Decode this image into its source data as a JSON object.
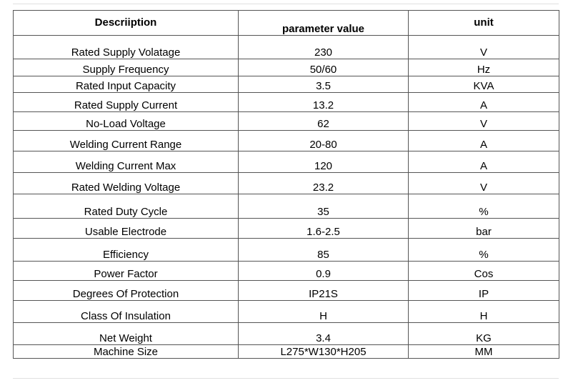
{
  "table": {
    "headers": [
      "Descriiption",
      "parameter value",
      "unit"
    ],
    "rows": [
      [
        "Rated Supply Volatage",
        "230",
        "V"
      ],
      [
        "Supply Frequency",
        "50/60",
        "Hz"
      ],
      [
        "Rated Input Capacity",
        "3.5",
        "KVA"
      ],
      [
        "Rated Supply Current",
        "13.2",
        "A"
      ],
      [
        "No-Load Voltage",
        "62",
        "V"
      ],
      [
        "Welding Current Range",
        "20-80",
        "A"
      ],
      [
        "Welding Current Max",
        "120",
        "A"
      ],
      [
        "Rated Welding Voltage",
        "23.2",
        "V"
      ],
      [
        "Rated Duty Cycle",
        "35",
        "%"
      ],
      [
        "Usable Electrode",
        "1.6-2.5",
        "bar"
      ],
      [
        "Efficiency",
        "85",
        "%"
      ],
      [
        "Power Factor",
        "0.9",
        "Cos"
      ],
      [
        "Degrees Of Protection",
        "IP21S",
        "IP"
      ],
      [
        "Class Of Insulation",
        "H",
        "H"
      ],
      [
        "Net Weight",
        "3.4",
        "KG"
      ],
      [
        "Machine Size",
        "L275*W130*H205",
        "MM"
      ]
    ]
  }
}
